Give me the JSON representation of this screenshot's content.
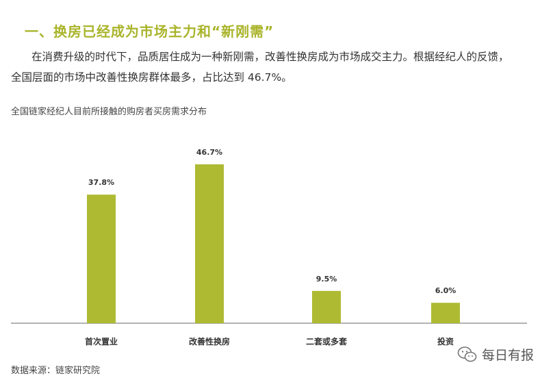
{
  "heading": "一、换房已经成为市场主力和“新刚需”",
  "paragraph": {
    "line1": "在消费升级的时代下，品质居住成为一种新刚需，改善性换房成为市场成交主力。根据经纪人的反馈，",
    "line2": "全国层面的市场中改善性换房群体最多，占比达到 46.7%。"
  },
  "chart_data": {
    "type": "bar",
    "title": "全国链家经纪人目前所接触的购房者买房需求分布",
    "categories": [
      "首次置业",
      "改善性换房",
      "二套或多套",
      "投资"
    ],
    "values": [
      37.8,
      46.7,
      9.5,
      6.0
    ],
    "value_labels": [
      "37.8%",
      "46.7%",
      "9.5%",
      "6.0%"
    ],
    "xlabel": "",
    "ylabel": "",
    "ylim": [
      0,
      46.7
    ],
    "grid": false,
    "legend": "none",
    "bar_color": "#aeba32"
  },
  "source": "数据来源：链家研究院",
  "watermark": {
    "text": "每日有报",
    "icon": "wechat-icon"
  }
}
